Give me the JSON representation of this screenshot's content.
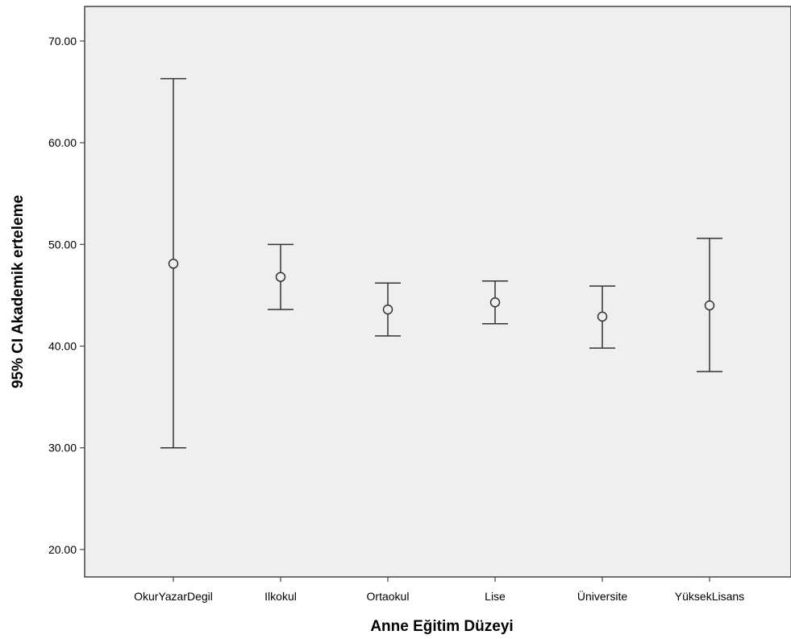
{
  "chart_data": {
    "type": "errorbar",
    "title": "",
    "xlabel": "Anne Eğitim Düzeyi",
    "ylabel": "95% CI Akademik erteleme",
    "categories": [
      "OkurYazarDegil",
      "Ilkokul",
      "Ortaokul",
      "Lise",
      "Üniversite",
      "YüksekLisans"
    ],
    "means": [
      48.1,
      46.8,
      43.6,
      44.3,
      42.9,
      44.0
    ],
    "lower": [
      30.0,
      43.6,
      41.0,
      42.2,
      39.8,
      37.5
    ],
    "upper": [
      66.3,
      50.0,
      46.2,
      46.4,
      45.9,
      50.6
    ],
    "ylim": [
      17.3,
      73.4
    ],
    "yticks": [
      20,
      30,
      40,
      50,
      60,
      70
    ],
    "ytick_labels": [
      "20.00",
      "30.00",
      "40.00",
      "50.00",
      "60.00",
      "70.00"
    ],
    "grid": false,
    "colors": {
      "plot_background": "#efefef",
      "marks": "#333333",
      "axis": "#444444"
    }
  }
}
